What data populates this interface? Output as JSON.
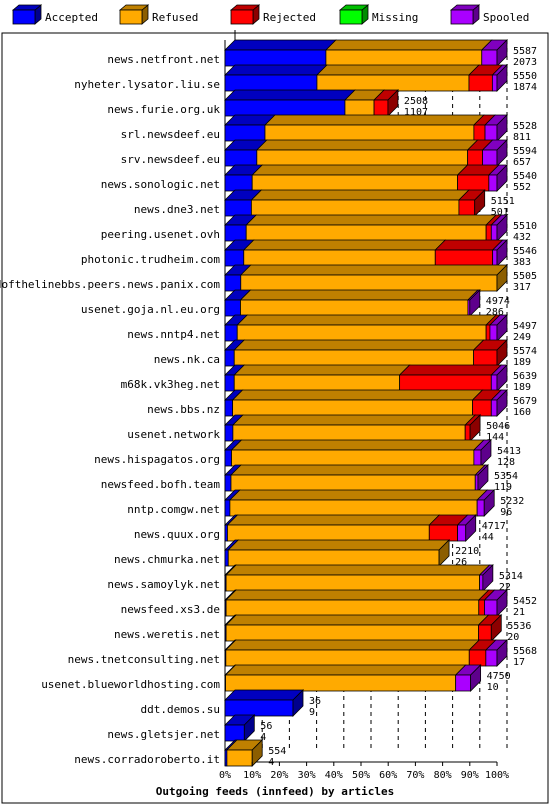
{
  "chart_data": {
    "type": "bar",
    "title": "Outgoing feeds (innfeed) by articles",
    "stacked": true,
    "orientation": "horizontal",
    "xlim": [
      0,
      100
    ],
    "x_unit": "%",
    "xticks": [
      "0%",
      "10%",
      "20%",
      "30%",
      "40%",
      "50%",
      "60%",
      "70%",
      "80%",
      "90%",
      "100%"
    ],
    "grid": true,
    "legend_position": "top",
    "legend": [
      {
        "name": "Accepted",
        "color": "#0000ff"
      },
      {
        "name": "Refused",
        "color": "#ffaa00"
      },
      {
        "name": "Rejected",
        "color": "#ff0000"
      },
      {
        "name": "Missing",
        "color": "#00ff00"
      },
      {
        "name": "Spooled",
        "color": "#aa00ff"
      }
    ],
    "categories": [
      "news.netfront.net",
      "nyheter.lysator.liu.se",
      "news.furie.org.uk",
      "srl.newsdeef.eu",
      "srv.newsdeef.eu",
      "news.sonologic.net",
      "news.dne3.net",
      "peering.usenet.ovh",
      "photonic.trudheim.com",
      "endofthelinebbs.peers.news.panix.com",
      "usenet.goja.nl.eu.org",
      "news.nntp4.net",
      "news.nk.ca",
      "m68k.vk3heg.net",
      "news.bbs.nz",
      "usenet.network",
      "news.hispagatos.org",
      "newsfeed.bofh.team",
      "nntp.comgw.net",
      "news.quux.org",
      "news.chmurka.net",
      "news.samoylyk.net",
      "newsfeed.xs3.de",
      "news.weretis.net",
      "news.tnetconsulting.net",
      "usenet.blueworldhosting.com",
      "ddt.demos.su",
      "news.gletsjer.net",
      "news.corradoroberto.it"
    ],
    "offered": [
      "5587",
      "5550",
      "2508",
      "5528",
      "5594",
      "5540",
      "5151",
      "5510",
      "5546",
      "5505",
      "4974",
      "5497",
      "5574",
      "5639",
      "5679",
      "5046",
      "5413",
      "5354",
      "5232",
      "4717",
      "2210",
      "5314",
      "5452",
      "5536",
      "5568",
      "4750",
      "36",
      "56",
      "554"
    ],
    "accepted": [
      "2073",
      "1874",
      "1107",
      "811",
      "657",
      "552",
      "501",
      "432",
      "383",
      "317",
      "286",
      "249",
      "189",
      "189",
      "160",
      "144",
      "128",
      "119",
      "96",
      "44",
      "26",
      "22",
      "21",
      "20",
      "17",
      "10",
      "9",
      "4",
      "4"
    ],
    "series": [
      {
        "name": "Accepted",
        "values": [
          37.1,
          33.8,
          44.1,
          14.7,
          11.7,
          10.0,
          9.7,
          7.8,
          6.9,
          5.8,
          5.7,
          4.5,
          3.4,
          3.4,
          2.8,
          2.9,
          2.4,
          2.2,
          1.8,
          0.9,
          1.2,
          0.4,
          0.4,
          0.4,
          0.3,
          0.2,
          25,
          7.1,
          0.7
        ]
      },
      {
        "name": "Refused",
        "values": [
          57.3,
          55.9,
          10.7,
          76.8,
          77.5,
          75.5,
          76.3,
          88.2,
          70.4,
          94.2,
          83.6,
          91.5,
          88.0,
          60.8,
          88.2,
          85.4,
          89.1,
          89.8,
          90.9,
          74.2,
          77.5,
          93.2,
          92.9,
          92.8,
          89.5,
          84.6,
          0,
          0,
          9.3
        ]
      },
      {
        "name": "Rejected",
        "values": [
          0,
          8.6,
          5.1,
          4.1,
          5.5,
          11.5,
          5.8,
          1.9,
          21.1,
          0,
          0,
          1.4,
          8.6,
          33.7,
          6.9,
          1.8,
          0,
          0,
          0,
          10.4,
          0,
          0,
          2.1,
          4.7,
          6.1,
          0,
          0,
          0,
          0
        ]
      },
      {
        "name": "Missing",
        "values": [
          0,
          0,
          0,
          0,
          0,
          0,
          0,
          0,
          0,
          0,
          0,
          0,
          0,
          0,
          0,
          0,
          0,
          0,
          0,
          0,
          0,
          0,
          0,
          0,
          0,
          0,
          0,
          0,
          0
        ]
      },
      {
        "name": "Spooled",
        "values": [
          5.6,
          1.7,
          0,
          4.4,
          5.3,
          3.0,
          0,
          2.1,
          1.6,
          0,
          0.7,
          2.6,
          0,
          2.1,
          2.1,
          0,
          2.6,
          1.0,
          2.6,
          3.0,
          0,
          1.2,
          4.6,
          0,
          4.1,
          5.5,
          0,
          0,
          0
        ]
      }
    ]
  }
}
